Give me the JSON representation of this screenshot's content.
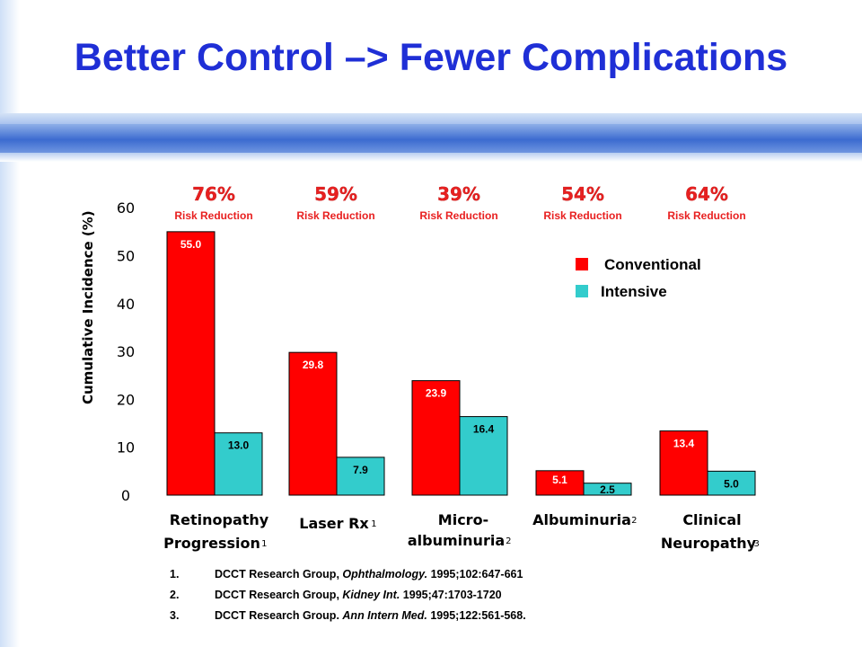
{
  "title": "Better Control –> Fewer Complications",
  "colors": {
    "title": "#1f2fd6",
    "conventional": "#ff0000",
    "intensive": "#33cccc",
    "reduction": "#e82020"
  },
  "chart_data": {
    "type": "bar",
    "ylabel": "Cumulative Incidence (%)",
    "ylim": [
      0,
      60
    ],
    "yticks": [
      0,
      10,
      20,
      30,
      40,
      50,
      60
    ],
    "series": [
      {
        "name": "Conventional",
        "values": [
          55.0,
          29.8,
          23.9,
          5.1,
          13.4
        ],
        "labels": [
          "55.0",
          "29.8",
          "23.9",
          "5.1",
          "13.4"
        ]
      },
      {
        "name": "Intensive",
        "values": [
          13.0,
          7.9,
          16.4,
          2.5,
          5.0
        ],
        "labels": [
          "13.0",
          "7.9",
          "16.4",
          "2.5",
          "5.0"
        ]
      }
    ],
    "categories": [
      {
        "lines": [
          "Retinopathy",
          "Progression"
        ],
        "sup": "1",
        "reduction": "76%"
      },
      {
        "lines": [
          "Laser Rx"
        ],
        "sup": "1",
        "reduction": "59%"
      },
      {
        "lines": [
          "Micro-",
          "albuminuria"
        ],
        "sup": "2",
        "reduction": "39%"
      },
      {
        "lines": [
          "Albuminuria"
        ],
        "sup": "2",
        "reduction": "54%"
      },
      {
        "lines": [
          "Clinical",
          "Neuropathy"
        ],
        "sup": "3",
        "reduction": "64%"
      }
    ],
    "reduction_label": "Risk Reduction",
    "legend_position": "right"
  },
  "references": [
    {
      "num": "1.",
      "authors": "DCCT Research Group,",
      "journal": "Ophthalmology.",
      "cite": "1995;102:647-661"
    },
    {
      "num": "2.",
      "authors": "DCCT Research Group,",
      "journal": "Kidney Int.",
      "cite": "1995;47:1703-1720"
    },
    {
      "num": "3.",
      "authors": "DCCT Research Group.",
      "journal": "Ann Intern Med.",
      "cite": "1995;122:561-568."
    }
  ]
}
